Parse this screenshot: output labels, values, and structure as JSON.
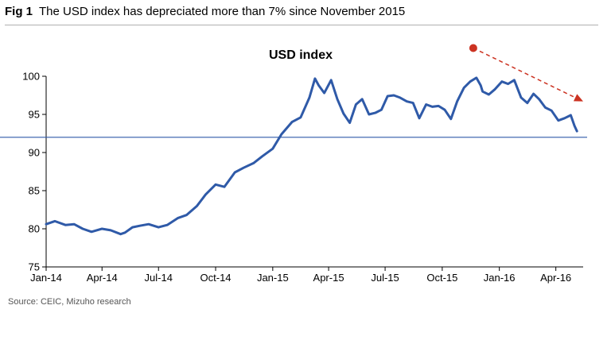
{
  "figure": {
    "label": "Fig 1",
    "caption": "The USD index has depreciated more than 7% since November 2015",
    "source": "Source: CEIC, Mizuho research"
  },
  "colors": {
    "series": "#2f5aa8",
    "reference_line": "#2f5aa8",
    "annotation_arrow": "#cc3322",
    "axis": "#000000"
  },
  "chart_data": {
    "type": "line",
    "title": "USD index",
    "xlabel": "",
    "ylabel": "",
    "ylim": [
      75,
      100
    ],
    "yticks": [
      75,
      80,
      85,
      90,
      95,
      100
    ],
    "xticks": [
      "Jan-14",
      "Apr-14",
      "Jul-14",
      "Oct-14",
      "Jan-15",
      "Apr-15",
      "Jul-15",
      "Oct-15",
      "Jan-16",
      "Apr-16"
    ],
    "xlim": [
      "2014-01-01",
      "2016-05-15"
    ],
    "grid": false,
    "legend": "none",
    "reference_line": {
      "y": 92
    },
    "annotation": {
      "type": "dashed-arrow",
      "from": {
        "x": "2015-11-20",
        "y": 103.7
      },
      "to": {
        "x": "2016-05-15",
        "y": 96.7
      }
    },
    "series": [
      {
        "x": [
          "2014-01-01",
          "2014-01-15",
          "2014-02-01",
          "2014-02-15",
          "2014-03-01",
          "2014-03-15",
          "2014-04-01",
          "2014-04-15",
          "2014-05-01",
          "2014-05-08",
          "2014-05-20",
          "2014-06-01",
          "2014-06-15",
          "2014-07-01",
          "2014-07-15",
          "2014-08-01",
          "2014-08-15",
          "2014-09-01",
          "2014-09-15",
          "2014-10-01",
          "2014-10-15",
          "2014-11-01",
          "2014-11-15",
          "2014-12-01",
          "2014-12-15",
          "2015-01-01",
          "2015-01-15",
          "2015-02-01",
          "2015-02-15",
          "2015-03-01",
          "2015-03-10",
          "2015-03-16",
          "2015-03-25",
          "2015-04-05",
          "2015-04-15",
          "2015-04-25",
          "2015-05-05",
          "2015-05-15",
          "2015-05-25",
          "2015-06-05",
          "2015-06-15",
          "2015-06-25",
          "2015-07-05",
          "2015-07-15",
          "2015-07-25",
          "2015-08-05",
          "2015-08-15",
          "2015-08-25",
          "2015-09-05",
          "2015-09-15",
          "2015-09-25",
          "2015-10-05",
          "2015-10-15",
          "2015-10-25",
          "2015-11-05",
          "2015-11-15",
          "2015-11-25",
          "2015-12-02",
          "2015-12-05",
          "2015-12-15",
          "2015-12-25",
          "2016-01-05",
          "2016-01-15",
          "2016-01-25",
          "2016-02-05",
          "2016-02-15",
          "2016-02-25",
          "2016-03-05",
          "2016-03-15",
          "2016-03-25",
          "2016-04-05",
          "2016-04-15",
          "2016-04-25",
          "2016-05-01",
          "2016-05-05"
        ],
        "values": [
          80.6,
          81.0,
          80.5,
          80.6,
          80.0,
          79.6,
          80.0,
          79.8,
          79.3,
          79.5,
          80.2,
          80.4,
          80.6,
          80.2,
          80.5,
          81.4,
          81.8,
          83.0,
          84.5,
          85.8,
          85.5,
          87.4,
          88.0,
          88.6,
          89.5,
          90.5,
          92.4,
          94.0,
          94.6,
          97.2,
          99.7,
          98.8,
          97.8,
          99.5,
          97.0,
          95.1,
          93.9,
          96.3,
          97.0,
          95.0,
          95.2,
          95.6,
          97.4,
          97.5,
          97.2,
          96.7,
          96.5,
          94.5,
          96.3,
          96.0,
          96.1,
          95.6,
          94.4,
          96.7,
          98.5,
          99.3,
          99.8,
          98.8,
          98.0,
          97.6,
          98.3,
          99.3,
          99.0,
          99.5,
          97.2,
          96.5,
          97.7,
          97.0,
          95.9,
          95.5,
          94.2,
          94.5,
          94.9,
          93.5,
          92.8
        ]
      }
    ]
  }
}
